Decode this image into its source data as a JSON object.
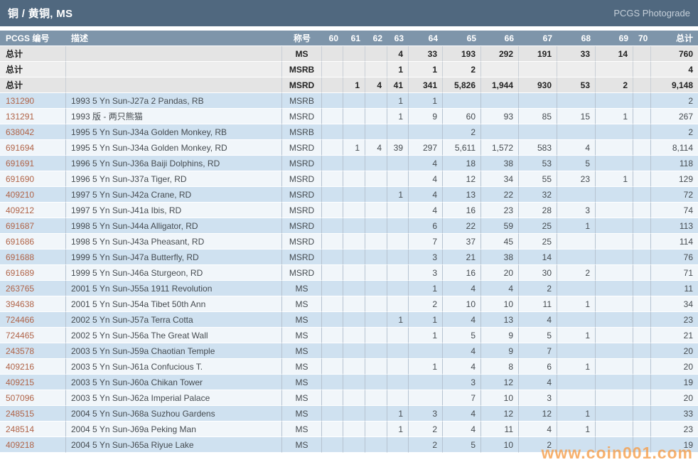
{
  "title_bar": {
    "title": "铜 / 黄铜, MS",
    "photograde": "PCGS Photograde"
  },
  "watermark": "www.coin001.com",
  "colors": {
    "title_bar_bg": "#50687f",
    "header_bg": "#7e95aa",
    "row_blue": "#cfe1f0",
    "row_white": "#f1f6fa",
    "total_row_bg": "#e4e4e4",
    "total_row_alt_bg": "#eeeeee",
    "pcgs_link": "#b06448",
    "watermark_orange": "#f59e4a"
  },
  "table": {
    "headers": [
      "PCGS 编号",
      "描述",
      "称号",
      "60",
      "61",
      "62",
      "63",
      "64",
      "65",
      "66",
      "67",
      "68",
      "69",
      "70",
      "总计"
    ],
    "total_rows": [
      {
        "label": "总计",
        "desc": "",
        "designation": "MS",
        "grades": [
          "",
          "",
          "",
          "4",
          "33",
          "193",
          "292",
          "191",
          "33",
          "14",
          ""
        ],
        "total": "760"
      },
      {
        "label": "总计",
        "desc": "",
        "designation": "MSRB",
        "grades": [
          "",
          "",
          "",
          "1",
          "1",
          "2",
          "",
          "",
          "",
          "",
          ""
        ],
        "total": "4"
      },
      {
        "label": "总计",
        "desc": "",
        "designation": "MSRD",
        "grades": [
          "",
          "1",
          "4",
          "41",
          "341",
          "5,826",
          "1,944",
          "930",
          "53",
          "2",
          ""
        ],
        "total": "9,148"
      }
    ],
    "rows": [
      {
        "pcgs": "131290",
        "desc": "1993 5 Yn Sun-J27a 2 Pandas, RB",
        "designation": "MSRB",
        "grades": [
          "",
          "",
          "",
          "1",
          "1",
          "",
          "",
          "",
          "",
          "",
          ""
        ],
        "total": "2"
      },
      {
        "pcgs": "131291",
        "desc": "1993 版 - 两只熊猫",
        "designation": "MSRD",
        "grades": [
          "",
          "",
          "",
          "1",
          "9",
          "60",
          "93",
          "85",
          "15",
          "1",
          ""
        ],
        "total": "267"
      },
      {
        "pcgs": "638042",
        "desc": "1995 5 Yn Sun-J34a Golden Monkey, RB",
        "designation": "MSRB",
        "grades": [
          "",
          "",
          "",
          "",
          "",
          "2",
          "",
          "",
          "",
          "",
          ""
        ],
        "total": "2"
      },
      {
        "pcgs": "691694",
        "desc": "1995 5 Yn Sun-J34a Golden Monkey, RD",
        "designation": "MSRD",
        "grades": [
          "",
          "1",
          "4",
          "39",
          "297",
          "5,611",
          "1,572",
          "583",
          "4",
          "",
          ""
        ],
        "total": "8,114"
      },
      {
        "pcgs": "691691",
        "desc": "1996 5 Yn Sun-J36a Baiji Dolphins, RD",
        "designation": "MSRD",
        "grades": [
          "",
          "",
          "",
          "",
          "4",
          "18",
          "38",
          "53",
          "5",
          "",
          ""
        ],
        "total": "118"
      },
      {
        "pcgs": "691690",
        "desc": "1996 5 Yn Sun-J37a Tiger, RD",
        "designation": "MSRD",
        "grades": [
          "",
          "",
          "",
          "",
          "4",
          "12",
          "34",
          "55",
          "23",
          "1",
          ""
        ],
        "total": "129"
      },
      {
        "pcgs": "409210",
        "desc": "1997 5 Yn Sun-J42a Crane, RD",
        "designation": "MSRD",
        "grades": [
          "",
          "",
          "",
          "1",
          "4",
          "13",
          "22",
          "32",
          "",
          "",
          ""
        ],
        "total": "72"
      },
      {
        "pcgs": "409212",
        "desc": "1997 5 Yn Sun-J41a Ibis, RD",
        "designation": "MSRD",
        "grades": [
          "",
          "",
          "",
          "",
          "4",
          "16",
          "23",
          "28",
          "3",
          "",
          ""
        ],
        "total": "74"
      },
      {
        "pcgs": "691687",
        "desc": "1998 5 Yn Sun-J44a Alligator, RD",
        "designation": "MSRD",
        "grades": [
          "",
          "",
          "",
          "",
          "6",
          "22",
          "59",
          "25",
          "1",
          "",
          ""
        ],
        "total": "113"
      },
      {
        "pcgs": "691686",
        "desc": "1998 5 Yn Sun-J43a Pheasant, RD",
        "designation": "MSRD",
        "grades": [
          "",
          "",
          "",
          "",
          "7",
          "37",
          "45",
          "25",
          "",
          "",
          ""
        ],
        "total": "114"
      },
      {
        "pcgs": "691688",
        "desc": "1999 5 Yn Sun-J47a Butterfly, RD",
        "designation": "MSRD",
        "grades": [
          "",
          "",
          "",
          "",
          "3",
          "21",
          "38",
          "14",
          "",
          "",
          ""
        ],
        "total": "76"
      },
      {
        "pcgs": "691689",
        "desc": "1999 5 Yn Sun-J46a Sturgeon, RD",
        "designation": "MSRD",
        "grades": [
          "",
          "",
          "",
          "",
          "3",
          "16",
          "20",
          "30",
          "2",
          "",
          ""
        ],
        "total": "71"
      },
      {
        "pcgs": "263765",
        "desc": "2001 5 Yn Sun-J55a 1911 Revolution",
        "designation": "MS",
        "grades": [
          "",
          "",
          "",
          "",
          "1",
          "4",
          "4",
          "2",
          "",
          "",
          ""
        ],
        "total": "11"
      },
      {
        "pcgs": "394638",
        "desc": "2001 5 Yn Sun-J54a Tibet 50th Ann",
        "designation": "MS",
        "grades": [
          "",
          "",
          "",
          "",
          "2",
          "10",
          "10",
          "11",
          "1",
          "",
          ""
        ],
        "total": "34"
      },
      {
        "pcgs": "724466",
        "desc": "2002 5 Yn Sun-J57a Terra Cotta",
        "designation": "MS",
        "grades": [
          "",
          "",
          "",
          "1",
          "1",
          "4",
          "13",
          "4",
          "",
          "",
          ""
        ],
        "total": "23"
      },
      {
        "pcgs": "724465",
        "desc": "2002 5 Yn Sun-J56a The Great Wall",
        "designation": "MS",
        "grades": [
          "",
          "",
          "",
          "",
          "1",
          "5",
          "9",
          "5",
          "1",
          "",
          ""
        ],
        "total": "21"
      },
      {
        "pcgs": "243578",
        "desc": "2003 5 Yn Sun-J59a Chaotian Temple",
        "designation": "MS",
        "grades": [
          "",
          "",
          "",
          "",
          "",
          "4",
          "9",
          "7",
          "",
          "",
          ""
        ],
        "total": "20"
      },
      {
        "pcgs": "409216",
        "desc": "2003 5 Yn Sun-J61a Confucious T.",
        "designation": "MS",
        "grades": [
          "",
          "",
          "",
          "",
          "1",
          "4",
          "8",
          "6",
          "1",
          "",
          ""
        ],
        "total": "20"
      },
      {
        "pcgs": "409215",
        "desc": "2003 5 Yn Sun-J60a Chikan Tower",
        "designation": "MS",
        "grades": [
          "",
          "",
          "",
          "",
          "",
          "3",
          "12",
          "4",
          "",
          "",
          ""
        ],
        "total": "19"
      },
      {
        "pcgs": "507096",
        "desc": "2003 5 Yn Sun-J62a Imperial Palace",
        "designation": "MS",
        "grades": [
          "",
          "",
          "",
          "",
          "",
          "7",
          "10",
          "3",
          "",
          "",
          ""
        ],
        "total": "20"
      },
      {
        "pcgs": "248515",
        "desc": "2004 5 Yn Sun-J68a Suzhou Gardens",
        "designation": "MS",
        "grades": [
          "",
          "",
          "",
          "1",
          "3",
          "4",
          "12",
          "12",
          "1",
          "",
          ""
        ],
        "total": "33"
      },
      {
        "pcgs": "248514",
        "desc": "2004 5 Yn Sun-J69a Peking Man",
        "designation": "MS",
        "grades": [
          "",
          "",
          "",
          "1",
          "2",
          "4",
          "11",
          "4",
          "1",
          "",
          ""
        ],
        "total": "23"
      },
      {
        "pcgs": "409218",
        "desc": "2004 5 Yn Sun-J65a Riyue Lake",
        "designation": "MS",
        "grades": [
          "",
          "",
          "",
          "",
          "2",
          "5",
          "10",
          "2",
          "",
          "",
          ""
        ],
        "total": "19"
      }
    ]
  }
}
